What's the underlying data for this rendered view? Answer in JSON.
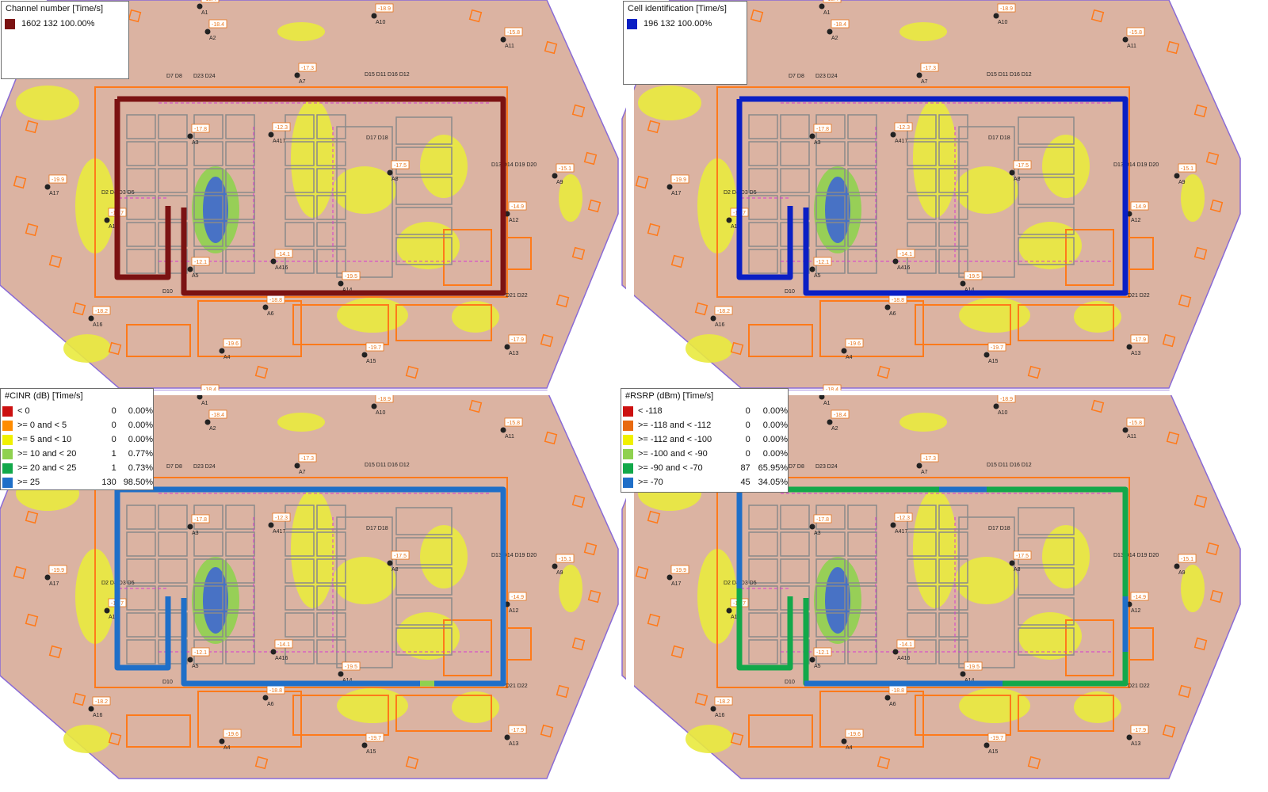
{
  "panels": [
    {
      "legend_title": "Channel number [Time/s]",
      "route_color": "#7b1212",
      "route_mode": "solid",
      "legend_rows": [
        {
          "color": "#7b1212",
          "label": "1602 132  100.00%"
        }
      ]
    },
    {
      "legend_title": "Cell identification [Time/s]",
      "route_color": "#0a1fc4",
      "route_mode": "solid",
      "legend_rows": [
        {
          "color": "#0a1fc4",
          "label": "196 132  100.00%"
        }
      ]
    },
    {
      "legend_title": "#CINR (dB) [Time/s]",
      "route_color": "#1f6fc8",
      "route_mode": "cinr",
      "legend_rows": [
        {
          "color": "#cc1010",
          "label": "< 0",
          "count": "0",
          "pct": "0.00%"
        },
        {
          "color": "#ff8c00",
          "label": ">= 0 and < 5",
          "count": "0",
          "pct": "0.00%"
        },
        {
          "color": "#f0f000",
          "label": ">= 5 and < 10",
          "count": "0",
          "pct": "0.00%"
        },
        {
          "color": "#8fd14f",
          "label": ">= 10 and < 20",
          "count": "1",
          "pct": "0.77%"
        },
        {
          "color": "#12a84a",
          "label": ">= 20 and < 25",
          "count": "1",
          "pct": "0.73%"
        },
        {
          "color": "#1f6fc8",
          "label": ">= 25",
          "count": "130",
          "pct": "98.50%"
        }
      ]
    },
    {
      "legend_title": "#RSRP (dBm) [Time/s]",
      "route_color": "#12a84a",
      "route_mode": "rsrp",
      "legend_rows": [
        {
          "color": "#cc1010",
          "label": "< -118",
          "count": "0",
          "pct": "0.00%"
        },
        {
          "color": "#e86a10",
          "label": ">= -118 and < -112",
          "count": "0",
          "pct": "0.00%"
        },
        {
          "color": "#f0f000",
          "label": ">= -112 and < -100",
          "count": "0",
          "pct": "0.00%"
        },
        {
          "color": "#8fd14f",
          "label": ">= -100 and < -90",
          "count": "0",
          "pct": "0.00%"
        },
        {
          "color": "#12a84a",
          "label": ">= -90 and < -70",
          "count": "87",
          "pct": "65.95%"
        },
        {
          "color": "#1f6fc8",
          "label": ">= -70",
          "count": "45",
          "pct": "34.05%"
        }
      ]
    }
  ],
  "map": {
    "base_color": "#dbb3a2",
    "coverage_color": "#e9ea3e",
    "strong_color": "#3a62d8",
    "wall_color": "#ff7a1a",
    "grid_color": "#8a8a8a",
    "cable_color": "#d43bd0",
    "antennas": [
      {
        "id": "A1",
        "power": "-18.4"
      },
      {
        "id": "A2",
        "power": "-18.4"
      },
      {
        "id": "A10",
        "power": "-18.9"
      },
      {
        "id": "A11",
        "power": "-15.8"
      },
      {
        "id": "A7",
        "power": "-17.3"
      },
      {
        "id": "A3",
        "power": "-17.8"
      },
      {
        "id": "A417",
        "power": "-12.3"
      },
      {
        "id": "A8",
        "power": "-17.5"
      },
      {
        "id": "A9",
        "power": "-15.1"
      },
      {
        "id": "A17",
        "power": "-19.9"
      },
      {
        "id": "A12",
        "power": "-14.9"
      },
      {
        "id": "A5",
        "power": "-12.1"
      },
      {
        "id": "A416",
        "power": "-14.1"
      },
      {
        "id": "A14",
        "power": "-19.5"
      },
      {
        "id": "A6",
        "power": "-18.8"
      },
      {
        "id": "A16",
        "power": "-18.2"
      },
      {
        "id": "A4",
        "power": "-19.6"
      },
      {
        "id": "A15",
        "power": "-19.7"
      },
      {
        "id": "A13",
        "power": "-17.9"
      },
      {
        "id": "A19",
        "power": "-17.7"
      }
    ],
    "nodes": [
      "D7 D8",
      "D23 D24",
      "D15 D11 D16 D12",
      "D17 D18",
      "D13 D14 D19 D20",
      "D2 D4 D3 D5",
      "D10",
      "D21 D22"
    ]
  }
}
